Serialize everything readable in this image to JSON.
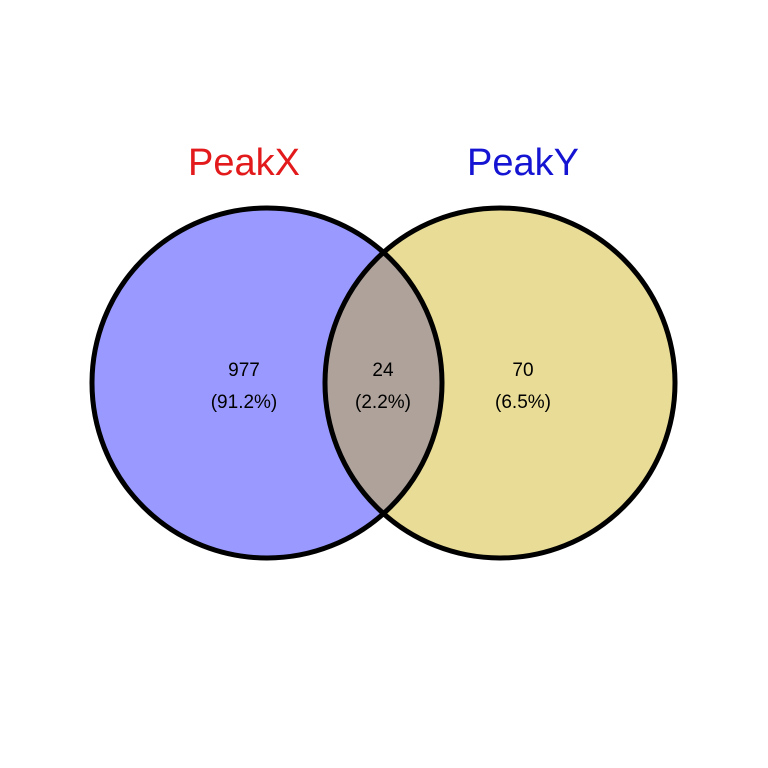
{
  "sets": [
    {
      "label": "PeakX",
      "label_color": "#e31a1c",
      "fill_color": "#9999ff"
    },
    {
      "label": "PeakY",
      "label_color": "#1414d2",
      "fill_color": "#e8dc96"
    }
  ],
  "overlap_fill_color": "#aea29a",
  "outline_color": "#000000",
  "regions": {
    "only_x": {
      "count": "977",
      "percent": "(91.2%)"
    },
    "both": {
      "count": "24",
      "percent": "(2.2%)"
    },
    "only_y": {
      "count": "70",
      "percent": "(6.5%)"
    }
  }
}
